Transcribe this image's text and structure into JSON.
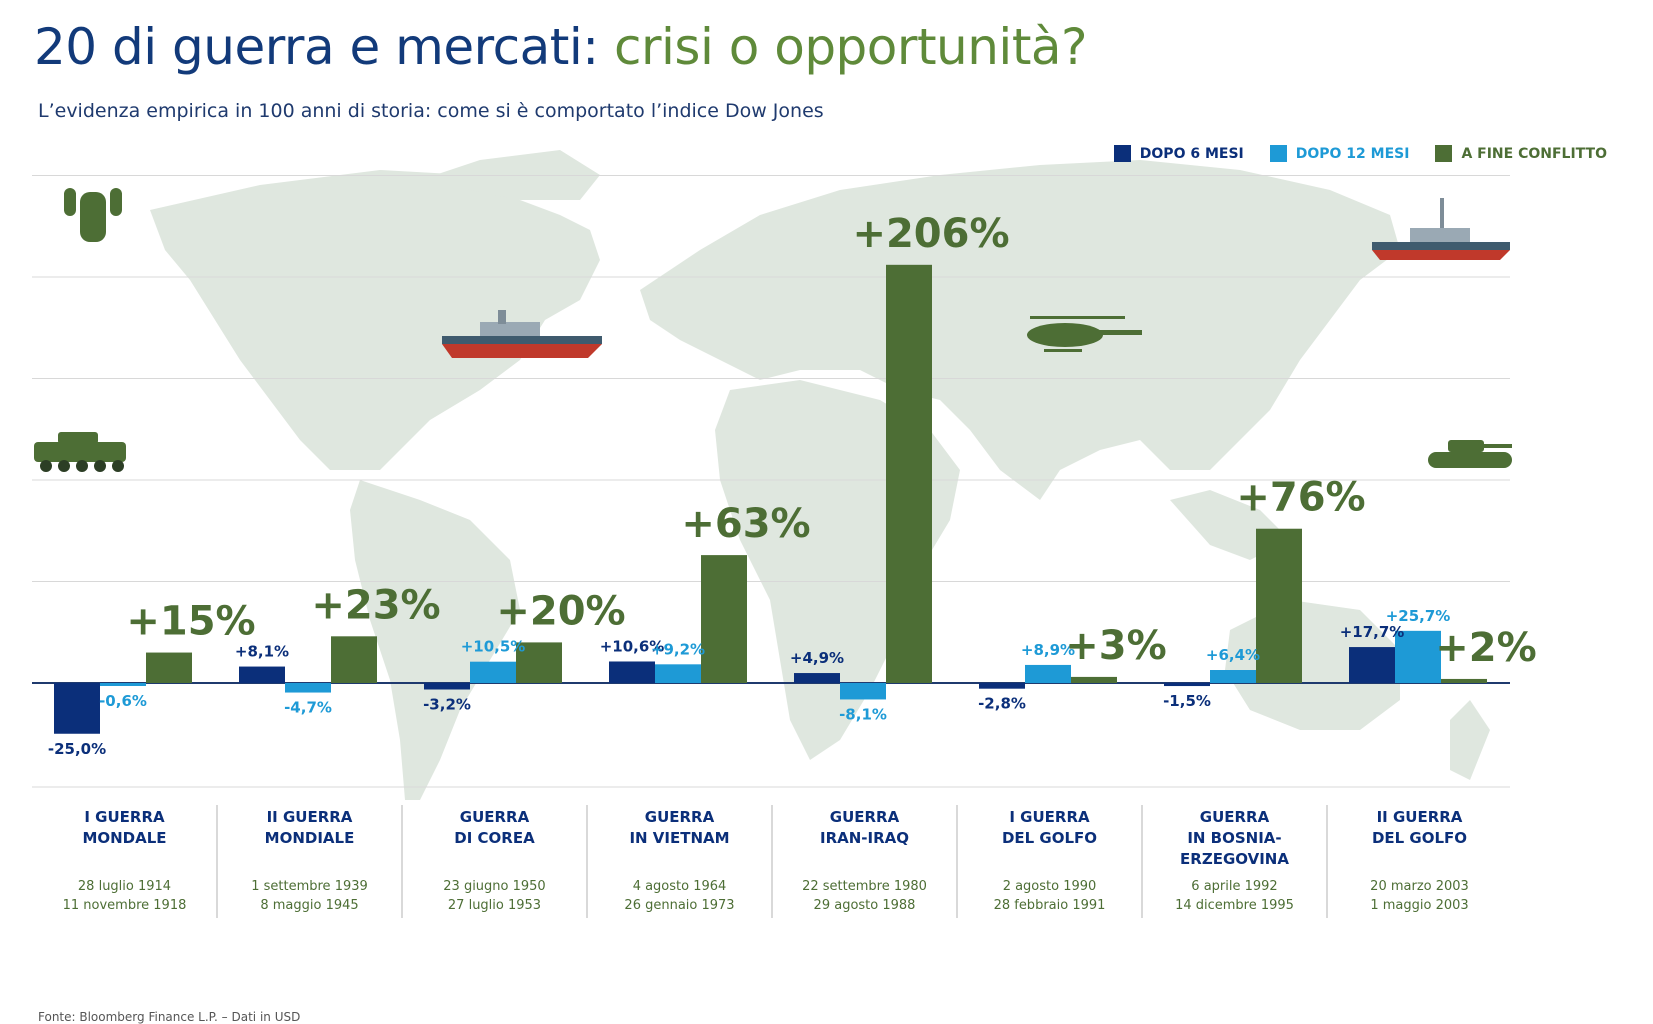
{
  "header": {
    "title_part1": "20 di guerra e mercati:",
    "title_part2": "crisi o opportunità?",
    "subtitle": "L’evidenza empirica in 100 anni di storia: come si è comportato l’indice Dow Jones"
  },
  "legend": [
    {
      "label": "DOPO 6 MESI",
      "color": "#0b2f7a"
    },
    {
      "label": "DOPO 12 MESI",
      "color": "#1e9ad6"
    },
    {
      "label": "A FINE CONFLITTO",
      "color": "#4d6e35"
    }
  ],
  "chart_data": {
    "type": "bar",
    "categories": [
      {
        "name": [
          "I GUERRA",
          "MONDALE"
        ],
        "dates": [
          "28 luglio 1914",
          "11 novembre 1918"
        ]
      },
      {
        "name": [
          "II GUERRA",
          "MONDIALE"
        ],
        "dates": [
          "1 settembre 1939",
          "8 maggio 1945"
        ]
      },
      {
        "name": [
          "GUERRA",
          "DI COREA"
        ],
        "dates": [
          "23 giugno 1950",
          "27 luglio 1953"
        ]
      },
      {
        "name": [
          "GUERRA",
          "IN VIETNAM"
        ],
        "dates": [
          "4 agosto 1964",
          "26 gennaio 1973"
        ]
      },
      {
        "name": [
          "GUERRA",
          "IRAN-IRAQ"
        ],
        "dates": [
          "22 settembre 1980",
          "29 agosto 1988"
        ]
      },
      {
        "name": [
          "I GUERRA",
          "DEL GOLFO"
        ],
        "dates": [
          "2 agosto 1990",
          "28 febbraio 1991"
        ]
      },
      {
        "name": [
          "GUERRA",
          "IN BOSNIA-",
          "ERZEGOVINA"
        ],
        "dates": [
          "6 aprile 1992",
          "14 dicembre 1995"
        ]
      },
      {
        "name": [
          "II GUERRA",
          "DEL GOLFO"
        ],
        "dates": [
          "20 marzo 2003",
          "1 maggio 2003"
        ]
      }
    ],
    "series": [
      {
        "name": "DOPO 6 MESI",
        "color": "#0b2f7a",
        "values": [
          -25.0,
          8.1,
          -3.2,
          10.6,
          4.9,
          -2.8,
          -1.5,
          17.7
        ],
        "labels": [
          "-25,0%",
          "+8,1%",
          "-3,2%",
          "+10,6%",
          "+4,9%",
          "-2,8%",
          "-1,5%",
          "+17,7%"
        ]
      },
      {
        "name": "DOPO 12 MESI",
        "color": "#1e9ad6",
        "values": [
          -0.6,
          -4.7,
          10.5,
          9.2,
          -8.1,
          8.9,
          6.4,
          25.7
        ],
        "labels": [
          "-0,6%",
          "-4,7%",
          "+10,5%",
          "+9,2%",
          "-8,1%",
          "+8,9%",
          "+6,4%",
          "+25,7%"
        ]
      },
      {
        "name": "A FINE CONFLITTO",
        "color": "#4d6e35",
        "values": [
          15,
          23,
          20,
          63,
          206,
          3,
          76,
          2
        ],
        "labels": [
          "+15%",
          "+23%",
          "+20%",
          "+63%",
          "+206%",
          "+3%",
          "+76%",
          "+2%"
        ]
      }
    ],
    "ylim": [
      -50,
      250
    ],
    "grid": true,
    "legend_position": "top-right"
  },
  "footer": {
    "source": "Fonte: Bloomberg Finance L.P. – Dati in USD"
  }
}
